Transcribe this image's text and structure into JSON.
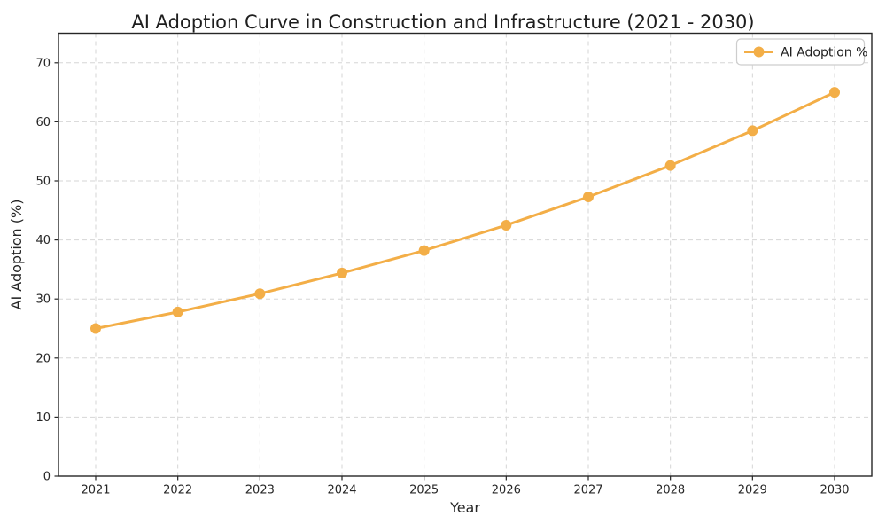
{
  "chart_data": {
    "type": "line",
    "title": "AI Adoption Curve in Construction and Infrastructure (2021 - 2030)",
    "xlabel": "Year",
    "ylabel": "AI Adoption (%)",
    "categories": [
      "2021",
      "2022",
      "2023",
      "2024",
      "2025",
      "2026",
      "2027",
      "2028",
      "2029",
      "2030"
    ],
    "series": [
      {
        "name": "AI Adoption %",
        "values": [
          25.0,
          27.8,
          30.9,
          34.4,
          38.2,
          42.5,
          47.3,
          52.6,
          58.5,
          65.0
        ],
        "color": "#F3AE47",
        "marker": "circle"
      }
    ],
    "ylim": [
      0,
      75
    ],
    "y_ticks": [
      0,
      10,
      20,
      30,
      40,
      50,
      60,
      70
    ],
    "grid": true,
    "grid_style": "dashed",
    "legend_position": "upper right"
  },
  "style": {
    "background_color": "#ffffff",
    "grid_color": "#d6d6d6",
    "spine_color": "#262626",
    "tick_color": "#262626",
    "title_color": "#1e1e1e",
    "legend_border_color": "#cdcdcd",
    "legend_background": "#ffffff"
  }
}
